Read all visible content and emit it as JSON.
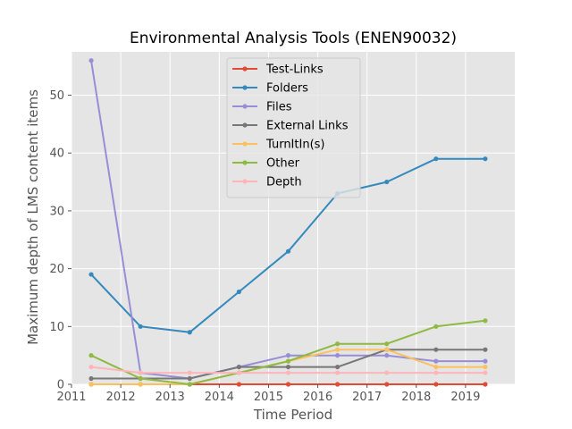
{
  "chart_data": {
    "type": "line",
    "title": "Environmental Analysis Tools (ENEN90032)",
    "xlabel": "Time Period",
    "ylabel": "Maximum depth of LMS content items",
    "xlim": [
      2011.0,
      2020.0
    ],
    "ylim": [
      0,
      57.5
    ],
    "xticks": [
      2011,
      2012,
      2013,
      2014,
      2015,
      2016,
      2017,
      2018,
      2019
    ],
    "yticks": [
      0,
      10,
      20,
      30,
      40,
      50
    ],
    "grid": true,
    "legend_position": "top-center",
    "x": [
      2011.4,
      2012.4,
      2013.4,
      2014.4,
      2015.4,
      2016.4,
      2017.4,
      2018.4,
      2019.4
    ],
    "series": [
      {
        "name": "Test-Links",
        "color": "#e24a33",
        "values": [
          0,
          0,
          0,
          0,
          0,
          0,
          0,
          0,
          0
        ]
      },
      {
        "name": "Folders",
        "color": "#348abd",
        "values": [
          19,
          10,
          9,
          16,
          23,
          33,
          35,
          39,
          39
        ]
      },
      {
        "name": "Files",
        "color": "#988ed5",
        "values": [
          56,
          2,
          1,
          3,
          5,
          5,
          5,
          4,
          4
        ]
      },
      {
        "name": "External Links",
        "color": "#777777",
        "values": [
          1,
          1,
          1,
          3,
          3,
          3,
          6,
          6,
          6
        ]
      },
      {
        "name": "TurnItIn(s)",
        "color": "#fbc15e",
        "values": [
          0,
          0,
          0,
          2,
          4,
          6,
          6,
          3,
          3
        ]
      },
      {
        "name": "Other",
        "color": "#8eba42",
        "values": [
          5,
          1,
          0,
          2,
          4,
          7,
          7,
          10,
          11
        ]
      },
      {
        "name": "Depth",
        "color": "#ffb5b8",
        "values": [
          3,
          2,
          2,
          2,
          2,
          2,
          2,
          2,
          2
        ]
      }
    ]
  }
}
